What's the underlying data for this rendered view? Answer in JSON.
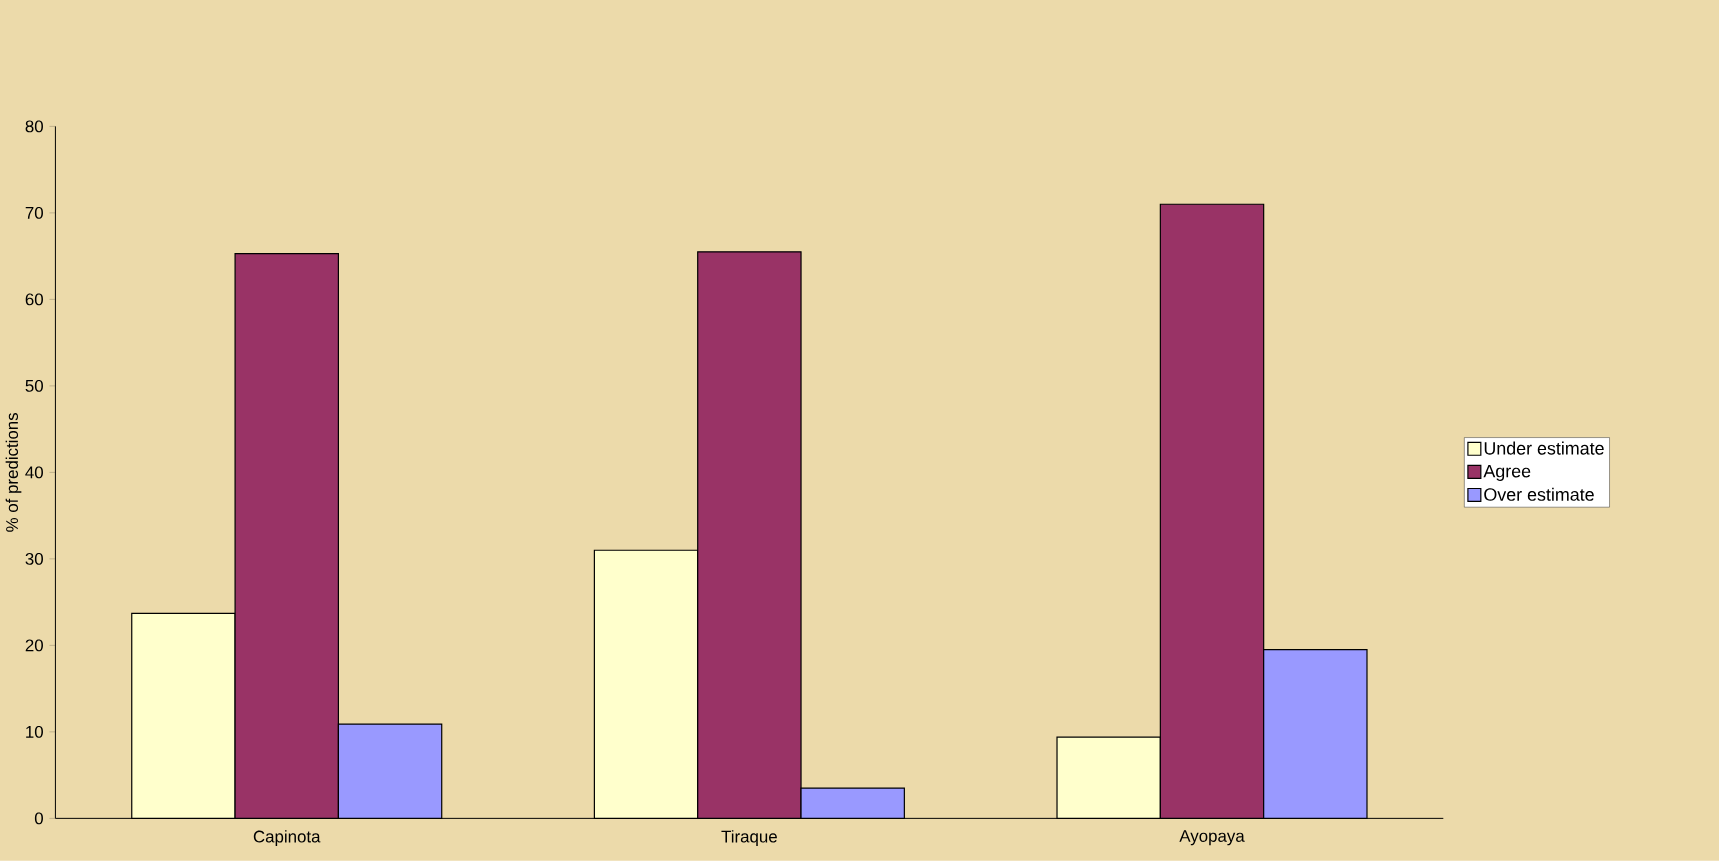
{
  "chart_data": {
    "type": "bar",
    "ylabel": "% of predictions",
    "categories": [
      "Capinota",
      "Tiraque",
      "Ayopaya"
    ],
    "series": [
      {
        "name": "Under estimate",
        "color": "#ffffcc",
        "values": [
          23.7,
          31.0,
          9.4
        ]
      },
      {
        "name": "Agree",
        "color": "#993366",
        "values": [
          65.3,
          65.5,
          71.0
        ]
      },
      {
        "name": "Over estimate",
        "color": "#9999ff",
        "values": [
          10.9,
          3.5,
          19.5
        ]
      }
    ],
    "ylim": [
      0,
      80
    ],
    "yticks": [
      0,
      10,
      20,
      30,
      40,
      50,
      60,
      70,
      80
    ],
    "legend": "right"
  }
}
